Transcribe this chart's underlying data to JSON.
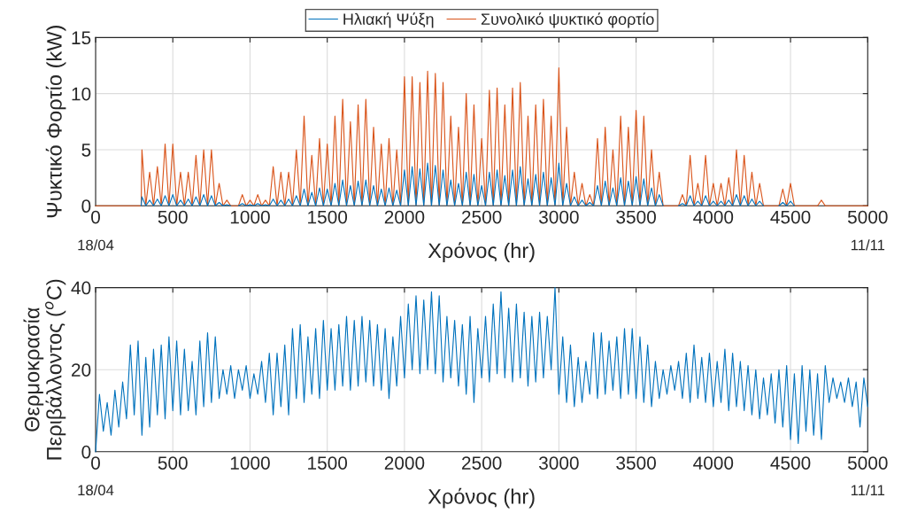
{
  "chart_data": [
    {
      "type": "line",
      "xlabel": "Χρόνος (hr)",
      "ylabel": "Ψυκτικό Φορτίο (kW)",
      "xlim": [
        0,
        5000
      ],
      "xticks": [
        0,
        500,
        1000,
        1500,
        2000,
        2500,
        3000,
        3500,
        4000,
        4500,
        5000
      ],
      "ylim": [
        0,
        15
      ],
      "yticks": [
        0,
        5,
        10,
        15
      ],
      "grid": true,
      "legend": "top",
      "annotations": [
        "18/04",
        "11/11"
      ],
      "series": [
        {
          "name": "Ηλιακή Ψύξη",
          "color": "#0072bd",
          "x": [
            295,
            300,
            325,
            350,
            375,
            400,
            425,
            450,
            475,
            500,
            525,
            550,
            575,
            600,
            625,
            650,
            675,
            700,
            725,
            750,
            775,
            800,
            825,
            850,
            875,
            900,
            925,
            950,
            975,
            1000,
            1025,
            1050,
            1075,
            1100,
            1125,
            1150,
            1175,
            1200,
            1225,
            1250,
            1275,
            1300,
            1325,
            1350,
            1375,
            1400,
            1425,
            1450,
            1475,
            1500,
            1525,
            1550,
            1575,
            1600,
            1625,
            1650,
            1675,
            1700,
            1725,
            1750,
            1775,
            1800,
            1825,
            1850,
            1875,
            1900,
            1925,
            1950,
            1975,
            2000,
            2025,
            2050,
            2075,
            2100,
            2125,
            2150,
            2175,
            2200,
            2225,
            2250,
            2275,
            2300,
            2325,
            2350,
            2375,
            2400,
            2425,
            2450,
            2475,
            2500,
            2525,
            2550,
            2575,
            2600,
            2625,
            2650,
            2675,
            2700,
            2725,
            2750,
            2775,
            2800,
            2825,
            2850,
            2875,
            2900,
            2925,
            2950,
            2975,
            3000,
            3025,
            3050,
            3075,
            3100,
            3125,
            3150,
            3175,
            3200,
            3225,
            3250,
            3275,
            3300,
            3325,
            3350,
            3375,
            3400,
            3425,
            3450,
            3475,
            3500,
            3525,
            3550,
            3575,
            3600,
            3625,
            3650,
            3675,
            3700,
            3725,
            3750,
            3775,
            3800,
            3825,
            3850,
            3875,
            3900,
            3925,
            3950,
            3975,
            4000,
            4025,
            4050,
            4075,
            4100,
            4125,
            4150,
            4175,
            4200,
            4225,
            4250,
            4275,
            4300,
            4325,
            4350,
            4375,
            4400,
            4425,
            4450,
            4475,
            4500,
            4525
          ],
          "values": [
            0,
            0.8,
            0,
            0.5,
            0,
            0.6,
            0,
            0.9,
            0,
            1,
            0,
            0.5,
            0,
            0.6,
            0,
            0.8,
            0,
            1,
            0,
            0.9,
            0,
            0.3,
            0,
            0.1,
            0,
            null,
            0,
            0.2,
            0,
            0.1,
            0,
            0.2,
            0,
            0.1,
            0,
            0.6,
            0,
            0.5,
            0,
            0.6,
            0,
            0.9,
            0,
            1.5,
            0,
            1.2,
            0,
            1.6,
            0,
            1.5,
            0,
            2,
            0,
            2.3,
            0,
            1.8,
            0,
            2.2,
            0,
            2.3,
            0,
            1.8,
            0,
            1.5,
            0,
            1.6,
            0,
            1.4,
            0,
            3.2,
            0,
            3.5,
            0,
            3.3,
            0,
            3.8,
            0,
            3.6,
            0,
            3.2,
            0,
            2.3,
            0,
            2,
            0,
            3,
            0,
            2.8,
            0,
            1.8,
            0,
            3,
            0,
            3.2,
            0,
            2.7,
            0,
            3.2,
            0,
            3.5,
            0,
            2.4,
            0,
            2.8,
            0,
            3,
            0,
            2.5,
            0,
            3.8,
            0,
            2,
            0,
            0.8,
            0,
            0.5,
            0,
            0.3,
            0,
            1.8,
            0,
            2.2,
            0,
            1.6,
            0,
            2.5,
            0,
            2.2,
            0,
            2.6,
            0,
            2.4,
            0,
            1.6,
            0,
            1,
            0,
            null,
            null,
            null,
            0,
            0.2,
            0,
            0.9,
            0,
            0.4,
            0,
            0.9,
            0,
            0.4,
            0,
            0.4,
            0,
            0.5,
            0,
            1,
            0,
            0.9,
            0,
            0.6,
            0,
            0.4,
            0,
            null,
            null,
            null,
            0,
            0.3,
            0,
            0.4,
            0
          ]
        },
        {
          "name": "Συνολικό ψυκτικό φορτίο",
          "color": "#d95319",
          "x": [
            0,
            295,
            300,
            325,
            350,
            375,
            400,
            425,
            450,
            475,
            500,
            525,
            550,
            575,
            600,
            625,
            650,
            675,
            700,
            725,
            750,
            775,
            800,
            825,
            850,
            875,
            900,
            925,
            950,
            975,
            1000,
            1025,
            1050,
            1075,
            1100,
            1125,
            1150,
            1175,
            1200,
            1225,
            1250,
            1275,
            1300,
            1325,
            1350,
            1375,
            1400,
            1425,
            1450,
            1475,
            1500,
            1525,
            1550,
            1575,
            1600,
            1625,
            1650,
            1675,
            1700,
            1725,
            1750,
            1775,
            1800,
            1825,
            1850,
            1875,
            1900,
            1925,
            1950,
            1975,
            2000,
            2025,
            2050,
            2075,
            2100,
            2125,
            2150,
            2175,
            2200,
            2225,
            2250,
            2275,
            2300,
            2325,
            2350,
            2375,
            2400,
            2425,
            2450,
            2475,
            2500,
            2525,
            2550,
            2575,
            2600,
            2625,
            2650,
            2675,
            2700,
            2725,
            2750,
            2775,
            2800,
            2825,
            2850,
            2875,
            2900,
            2925,
            2950,
            2975,
            3000,
            3025,
            3050,
            3075,
            3100,
            3125,
            3150,
            3175,
            3200,
            3225,
            3250,
            3275,
            3300,
            3325,
            3350,
            3375,
            3400,
            3425,
            3450,
            3475,
            3500,
            3525,
            3550,
            3575,
            3600,
            3625,
            3650,
            3675,
            3700,
            3725,
            3750,
            3775,
            3800,
            3825,
            3850,
            3875,
            3900,
            3925,
            3950,
            3975,
            4000,
            4025,
            4050,
            4075,
            4100,
            4125,
            4150,
            4175,
            4200,
            4225,
            4250,
            4275,
            4300,
            4325,
            4350,
            4375,
            4400,
            4425,
            4450,
            4475,
            4500,
            4525,
            4550,
            4575,
            4600,
            4625,
            4650,
            4675,
            4700,
            4725,
            5000
          ],
          "values": [
            0,
            0,
            5,
            0,
            3,
            0,
            3.5,
            0,
            5.5,
            0,
            5.5,
            0,
            3,
            0,
            3,
            0,
            4.5,
            0,
            5,
            0,
            5,
            0,
            2,
            0,
            0.5,
            0,
            0,
            0,
            1,
            0,
            0.5,
            0,
            1,
            0,
            0.5,
            0,
            3.5,
            0,
            3,
            0,
            3,
            0,
            5,
            0,
            8,
            0,
            4.5,
            0,
            6,
            0,
            5.5,
            0,
            8,
            0,
            9.5,
            0,
            7.5,
            0,
            9,
            0,
            9.5,
            0,
            7,
            0,
            5.5,
            0,
            6,
            0,
            5,
            0,
            11.5,
            0,
            11.5,
            0,
            11,
            0,
            12,
            0,
            11.8,
            0,
            11,
            0,
            8,
            0,
            7,
            0,
            10,
            0,
            9,
            0,
            6,
            0,
            10.3,
            0,
            10.5,
            0,
            9,
            0,
            10.5,
            0,
            11,
            0,
            8,
            0,
            9,
            0,
            9.5,
            0,
            8,
            0,
            12.3,
            0,
            7,
            0,
            3,
            0,
            2,
            0,
            1,
            0,
            6,
            0,
            7,
            0,
            5,
            0,
            8,
            0,
            7,
            0,
            8.5,
            0,
            8,
            0,
            5,
            0,
            3,
            0,
            0,
            0,
            0,
            0,
            1,
            0,
            4.5,
            0,
            2,
            0,
            4.5,
            0,
            2,
            0,
            2,
            0,
            2.5,
            0,
            5,
            0,
            4.5,
            0,
            3,
            0,
            2,
            0,
            0,
            0,
            0,
            0,
            1.5,
            0,
            2,
            0,
            0,
            0,
            0,
            0,
            0,
            0,
            0.5,
            0,
            0
          ]
        }
      ]
    },
    {
      "type": "line",
      "xlabel": "Χρόνος (hr)",
      "ylabel": "Θερμοκρασία\nΠεριβάλλοντος ($^{o}$C)",
      "xlim": [
        0,
        5000
      ],
      "xticks": [
        0,
        500,
        1000,
        1500,
        2000,
        2500,
        3000,
        3500,
        4000,
        4500,
        5000
      ],
      "ylim": [
        0,
        40
      ],
      "yticks": [
        0,
        20,
        40
      ],
      "grid": true,
      "annotations": [
        "18/04",
        "11/11"
      ],
      "series": [
        {
          "color": "#0072bd",
          "x": [
            0,
            25,
            50,
            75,
            100,
            125,
            150,
            175,
            200,
            225,
            250,
            275,
            300,
            325,
            350,
            375,
            400,
            425,
            450,
            475,
            500,
            525,
            550,
            575,
            600,
            625,
            650,
            675,
            700,
            725,
            750,
            775,
            800,
            825,
            850,
            875,
            900,
            925,
            950,
            975,
            1000,
            1025,
            1050,
            1075,
            1100,
            1125,
            1150,
            1175,
            1200,
            1225,
            1250,
            1275,
            1300,
            1325,
            1350,
            1375,
            1400,
            1425,
            1450,
            1475,
            1500,
            1525,
            1550,
            1575,
            1600,
            1625,
            1650,
            1675,
            1700,
            1725,
            1750,
            1775,
            1800,
            1825,
            1850,
            1875,
            1900,
            1925,
            1950,
            1975,
            2000,
            2025,
            2050,
            2075,
            2100,
            2125,
            2150,
            2175,
            2200,
            2225,
            2250,
            2275,
            2300,
            2325,
            2350,
            2375,
            2400,
            2425,
            2450,
            2475,
            2500,
            2525,
            2550,
            2575,
            2600,
            2625,
            2650,
            2675,
            2700,
            2725,
            2750,
            2775,
            2800,
            2825,
            2850,
            2875,
            2900,
            2925,
            2950,
            2975,
            3000,
            3025,
            3050,
            3075,
            3100,
            3125,
            3150,
            3175,
            3200,
            3225,
            3250,
            3275,
            3300,
            3325,
            3350,
            3375,
            3400,
            3425,
            3450,
            3475,
            3500,
            3525,
            3550,
            3575,
            3600,
            3625,
            3650,
            3675,
            3700,
            3725,
            3750,
            3775,
            3800,
            3825,
            3850,
            3875,
            3900,
            3925,
            3950,
            3975,
            4000,
            4025,
            4050,
            4075,
            4100,
            4125,
            4150,
            4175,
            4200,
            4225,
            4250,
            4275,
            4300,
            4325,
            4350,
            4375,
            4400,
            4425,
            4450,
            4475,
            4500,
            4525,
            4550,
            4575,
            4600,
            4625,
            4650,
            4675,
            4700,
            4725,
            4750,
            4775,
            4800,
            4825,
            4850,
            4875,
            4900,
            4925,
            4950,
            4975,
            5000
          ],
          "values": [
            0,
            14,
            5,
            12,
            4,
            15,
            6,
            17,
            8,
            26,
            9,
            27,
            4,
            23,
            6,
            25,
            9,
            26,
            8,
            28,
            10,
            27,
            9,
            25,
            10,
            22,
            9,
            27,
            11,
            29,
            12,
            28,
            13,
            20,
            14,
            21,
            13,
            20,
            15,
            21,
            13,
            19,
            14,
            22,
            12,
            24,
            9,
            24,
            11,
            26,
            9,
            30,
            13,
            31,
            12,
            28,
            14,
            30,
            13,
            32,
            15,
            30,
            15,
            31,
            16,
            33,
            15,
            32,
            16,
            33,
            17,
            32,
            16,
            31,
            15,
            30,
            13,
            28,
            16,
            33,
            18,
            36,
            20,
            38,
            19,
            37,
            20,
            39,
            19,
            38,
            17,
            33,
            18,
            32,
            16,
            31,
            14,
            33,
            12,
            30,
            18,
            33,
            17,
            36,
            19,
            39,
            18,
            35,
            17,
            36,
            18,
            34,
            16,
            33,
            17,
            34,
            18,
            33,
            20,
            40,
            14,
            28,
            12,
            26,
            11,
            23,
            12,
            22,
            14,
            29,
            13,
            29,
            14,
            27,
            15,
            28,
            13,
            30,
            14,
            30,
            13,
            28,
            12,
            26,
            11,
            22,
            13,
            20,
            14,
            21,
            15,
            22,
            13,
            24,
            12,
            26,
            13,
            23,
            12,
            24,
            11,
            22,
            12,
            25,
            10,
            24,
            11,
            22,
            10,
            21,
            9,
            20,
            8,
            18,
            9,
            19,
            7,
            20,
            6,
            21,
            3,
            19,
            2,
            21,
            5,
            20,
            4,
            19,
            3,
            21,
            12,
            18,
            13,
            17,
            12,
            18,
            11,
            17,
            6,
            18,
            11
          ]
        }
      ]
    }
  ]
}
